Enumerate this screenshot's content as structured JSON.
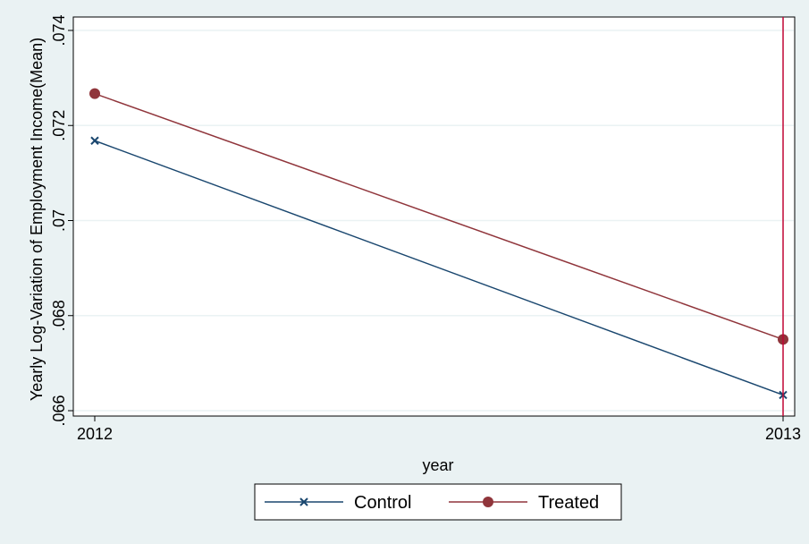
{
  "chart_data": {
    "type": "line",
    "x": [
      2012,
      2013
    ],
    "categories": [
      "2012",
      "2013"
    ],
    "series": [
      {
        "name": "Control",
        "values": [
          0.07168,
          0.06633
        ],
        "color": "#1a476f",
        "marker": "x"
      },
      {
        "name": "Treated",
        "values": [
          0.07267,
          0.0675
        ],
        "color": "#90353b",
        "marker": "circle"
      }
    ],
    "xlabel": "year",
    "ylabel": "Yearly Log-Variation of Employment Income(Mean)",
    "ylim": [
      0.066,
      0.074
    ],
    "yticks": [
      0.066,
      0.068,
      0.07,
      0.072,
      0.074
    ],
    "ytick_labels": [
      ".066",
      ".068",
      ".07",
      ".072",
      ".074"
    ],
    "xtick_labels": [
      "2012",
      "2013"
    ],
    "reference_line": {
      "x": 2013,
      "color": "#c10534"
    },
    "grid": true,
    "legend_position": "bottom"
  }
}
